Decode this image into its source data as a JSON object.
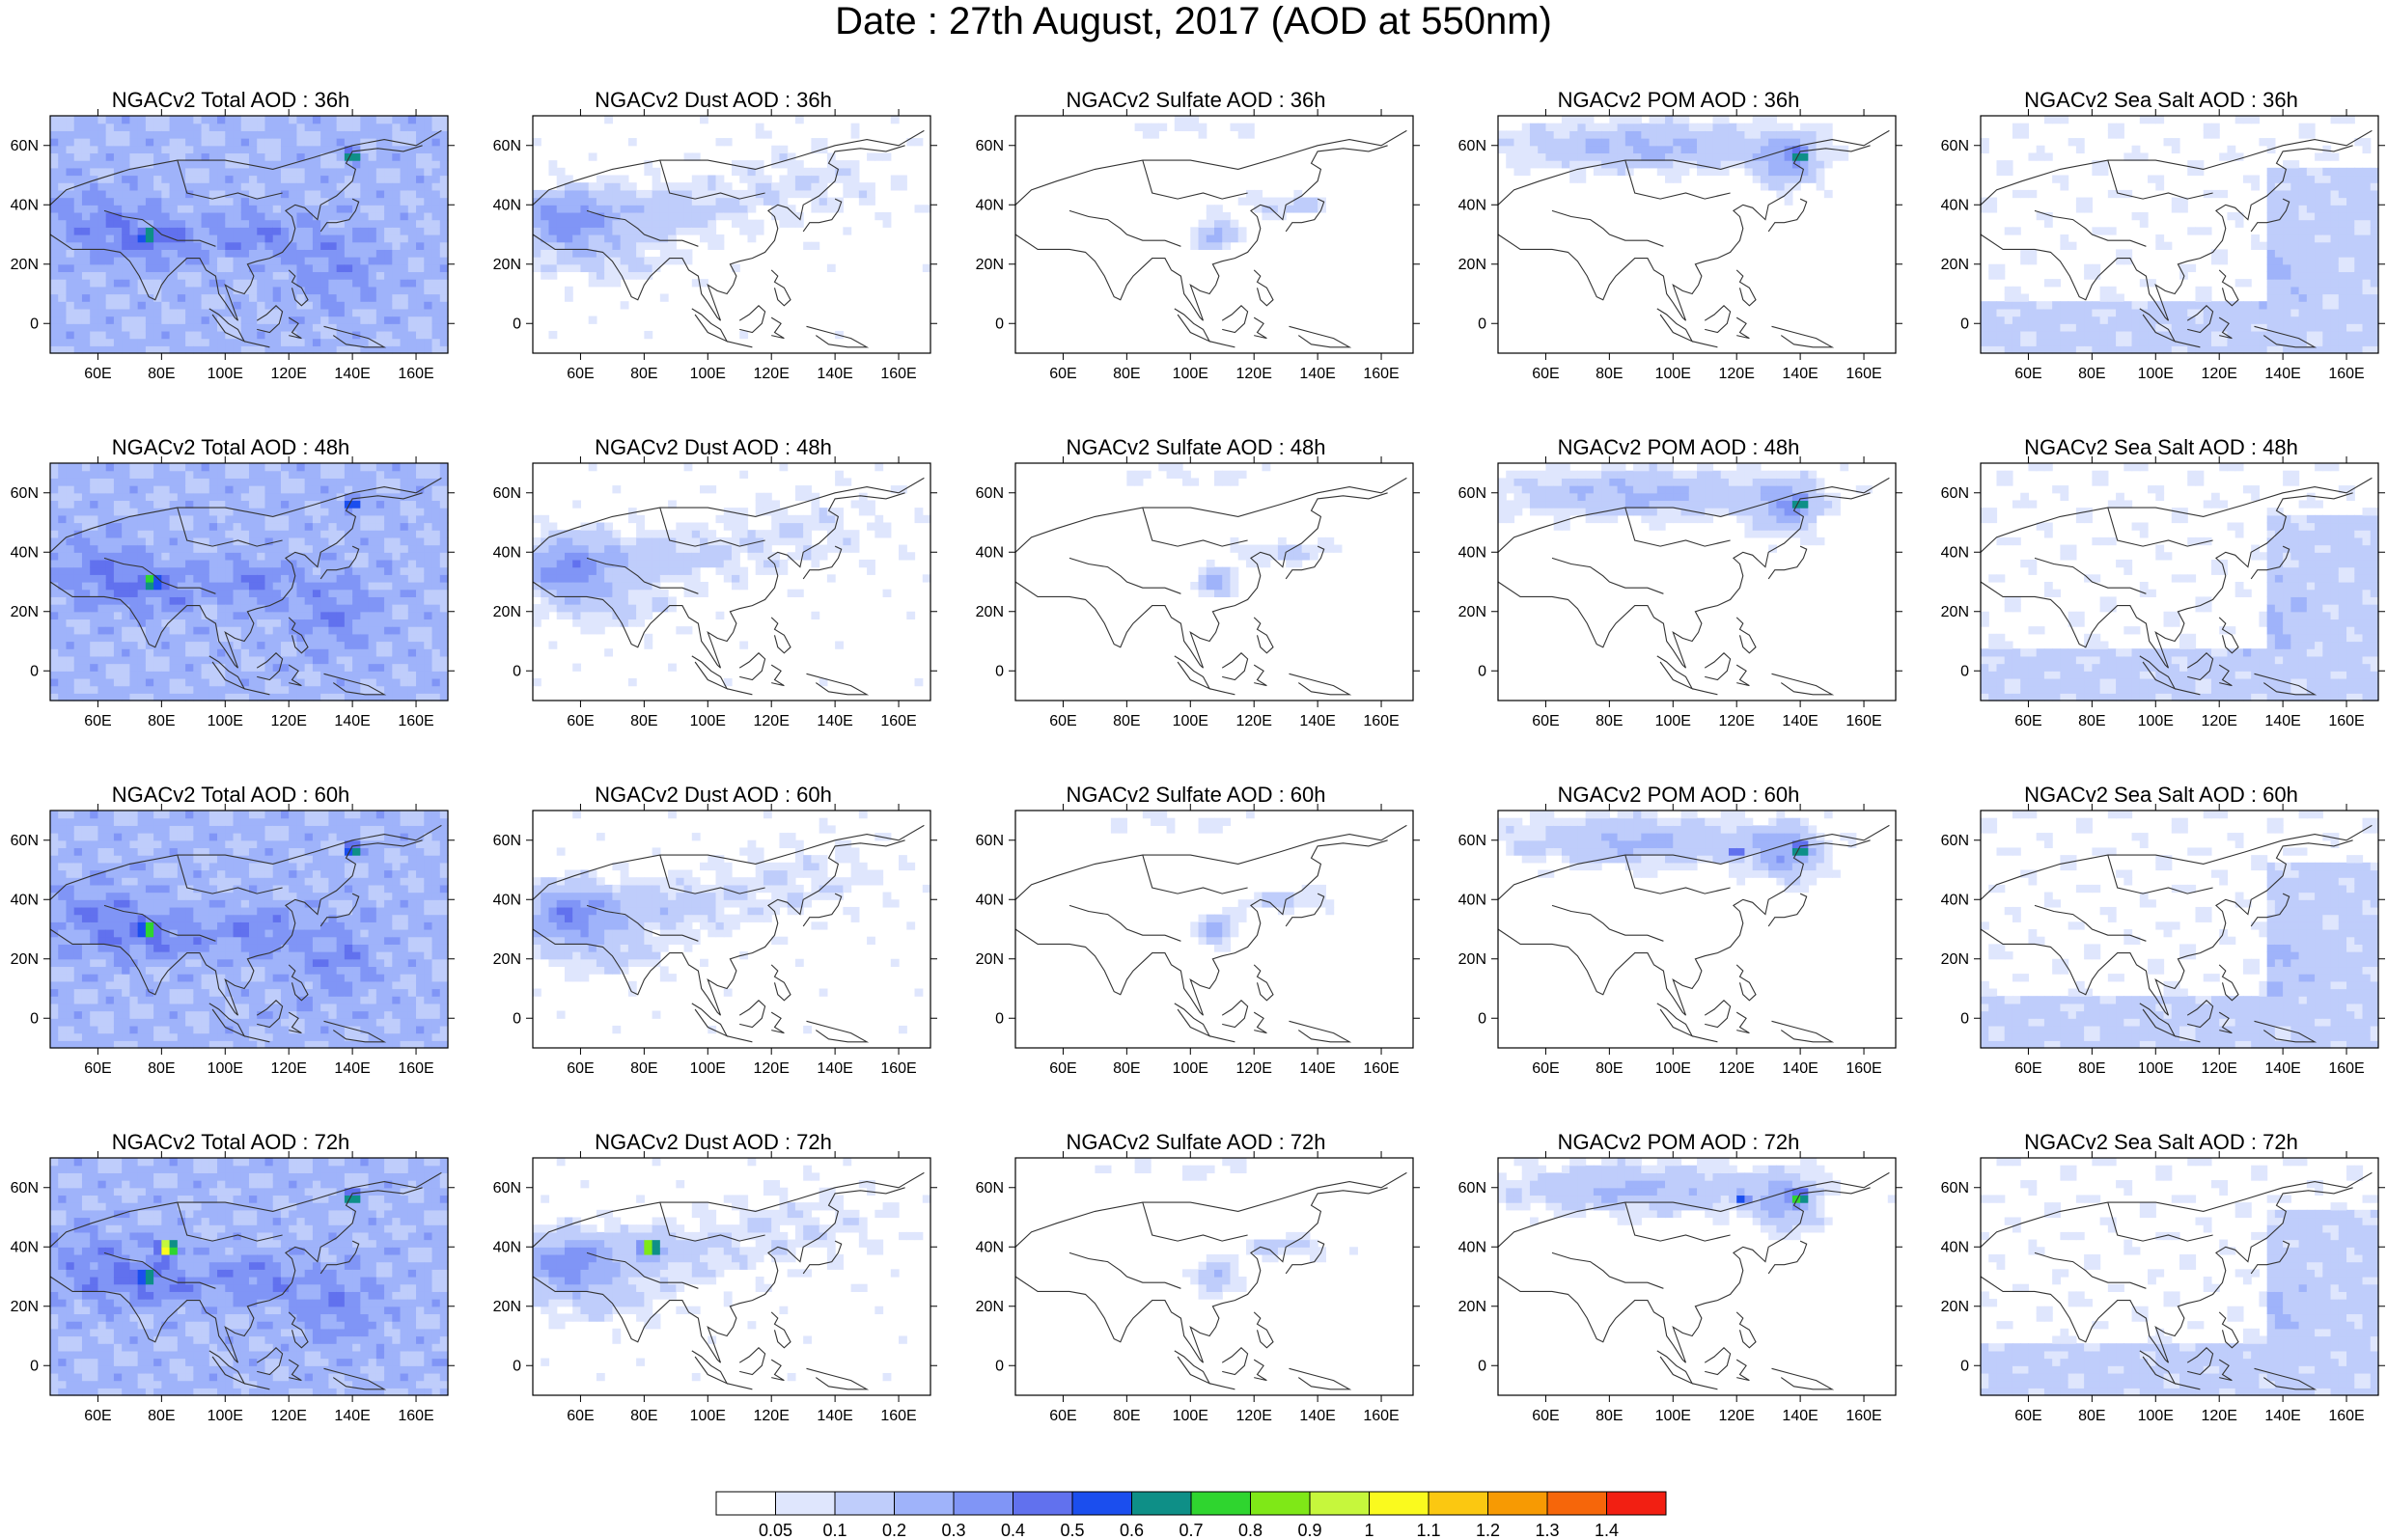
{
  "title": "Date : 27th August, 2017 (AOD at 550nm)",
  "panel_titles": [
    [
      "NGACv2 Total AOD : 36h",
      "NGACv2 Dust AOD : 36h",
      "NGACv2 Sulfate AOD : 36h",
      "NGACv2 POM AOD : 36h",
      "NGACv2 Sea Salt AOD : 36h"
    ],
    [
      "NGACv2 Total AOD : 48h",
      "NGACv2 Dust AOD : 48h",
      "NGACv2 Sulfate AOD : 48h",
      "NGACv2 POM AOD : 48h",
      "NGACv2 Sea Salt AOD : 48h"
    ],
    [
      "NGACv2 Total AOD : 60h",
      "NGACv2 Dust AOD : 60h",
      "NGACv2 Sulfate AOD : 60h",
      "NGACv2 POM AOD : 60h",
      "NGACv2 Sea Salt AOD : 60h"
    ],
    [
      "NGACv2 Total AOD : 72h",
      "NGACv2 Dust AOD : 72h",
      "NGACv2 Sulfate AOD : 72h",
      "NGACv2 POM AOD : 72h",
      "NGACv2 Sea Salt  AOD : 72h"
    ]
  ],
  "map_extent": {
    "lon": [
      45,
      170
    ],
    "lat": [
      -10,
      70
    ]
  },
  "lon_ticks": [
    {
      "value": 60,
      "label": "60E"
    },
    {
      "value": 80,
      "label": "80E"
    },
    {
      "value": 100,
      "label": "100E"
    },
    {
      "value": 120,
      "label": "120E"
    },
    {
      "value": 140,
      "label": "140E"
    },
    {
      "value": 160,
      "label": "160E"
    }
  ],
  "lat_ticks": [
    {
      "value": 0,
      "label": "0"
    },
    {
      "value": 20,
      "label": "20N"
    },
    {
      "value": 40,
      "label": "40N"
    },
    {
      "value": 60,
      "label": "60N"
    }
  ],
  "colorbar": {
    "colors": [
      "#ffffff",
      "#dfe6fd",
      "#bfcdfb",
      "#9fb3fa",
      "#8095f6",
      "#6171ee",
      "#1b4eee",
      "#0e8f87",
      "#2fd52f",
      "#7fe817",
      "#c6f73c",
      "#fafa1e",
      "#fbc811",
      "#f79a03",
      "#f6660a",
      "#f21f12"
    ],
    "labels": [
      "0.05",
      "0.1",
      "0.2",
      "0.3",
      "0.4",
      "0.5",
      "0.6",
      "0.7",
      "0.8",
      "0.9",
      "1",
      "1.1",
      "1.2",
      "1.3",
      "1.4"
    ]
  }
}
